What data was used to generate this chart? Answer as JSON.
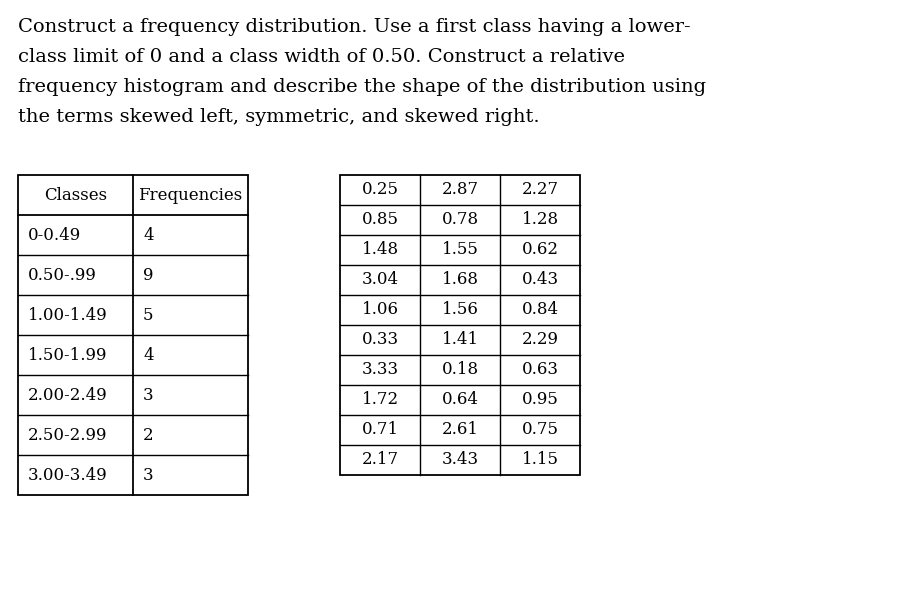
{
  "title_lines": [
    "Construct a frequency distribution. Use a first class having a lower-",
    "class limit of 0 and a class width of 0.50. Construct a relative",
    "frequency histogram and describe the shape of the distribution using",
    "the terms skewed left, symmetric, and skewed right."
  ],
  "freq_table": {
    "headers": [
      "Classes",
      "Frequencies"
    ],
    "rows": [
      [
        "0-0.49",
        "4"
      ],
      [
        "0.50-.99",
        "9"
      ],
      [
        "1.00-1.49",
        "5"
      ],
      [
        "1.50-1.99",
        "4"
      ],
      [
        "2.00-2.49",
        "3"
      ],
      [
        "2.50-2.99",
        "2"
      ],
      [
        "3.00-3.49",
        "3"
      ]
    ]
  },
  "data_table": {
    "col1": [
      0.25,
      0.85,
      1.48,
      3.04,
      1.06,
      0.33,
      3.33,
      1.72,
      0.71,
      2.17
    ],
    "col2": [
      2.87,
      0.78,
      1.55,
      1.68,
      1.56,
      1.41,
      0.18,
      0.64,
      2.61,
      3.43
    ],
    "col3": [
      2.27,
      1.28,
      0.62,
      0.43,
      0.84,
      2.29,
      0.63,
      0.95,
      0.75,
      1.15
    ]
  },
  "bg_color": "#ffffff",
  "text_color": "#000000",
  "title_fontsize": 14,
  "table_fontsize": 12,
  "fig_width": 9.05,
  "fig_height": 5.9,
  "dpi": 100
}
